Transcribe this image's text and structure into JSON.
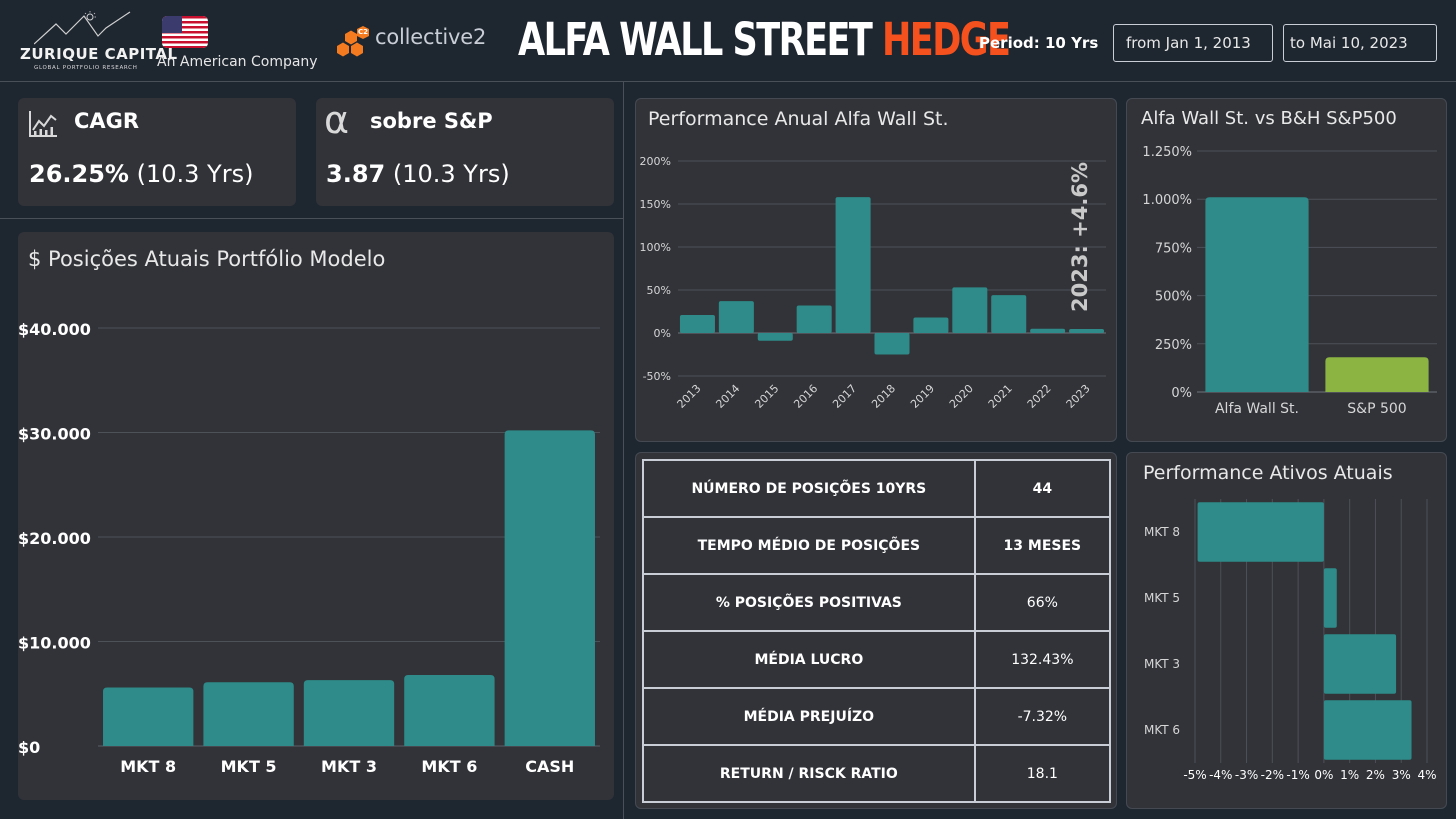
{
  "header": {
    "brand_name": "ZURIQUE CAPITAL",
    "brand_sub": "GLOBAL PORTFOLIO RESEARCH",
    "company_tag": "An American Company",
    "c2_badge": "C2",
    "c2_name": "collective2",
    "title_main": "ALFA WALL STREET",
    "title_accent": "HEDGE",
    "period": "Period: 10 Yrs",
    "from_date": "from Jan 1, 2013",
    "to_date": "to Mai 10, 2023"
  },
  "kpis": {
    "cagr": {
      "label": "CAGR",
      "value": "26.25%",
      "suffix": "(10.3 Yrs)"
    },
    "alpha": {
      "symbol": "α",
      "label": "sobre S&P",
      "value": "3.87",
      "suffix": "(10.3 Yrs)"
    }
  },
  "stats_table": [
    {
      "label": "NÚMERO DE POSIÇÕES 10YRS",
      "value": "44"
    },
    {
      "label": "TEMPO MÉDIO DE POSIÇÕES",
      "value": "13 MESES"
    },
    {
      "label": "% POSIÇÕES POSITIVAS",
      "value": "66%"
    },
    {
      "label": "MÉDIA LUCRO",
      "value": "132.43%"
    },
    {
      "label": "MÉDIA PREJUÍZO",
      "value": "-7.32%"
    },
    {
      "label": "RETURN / RISCK RATIO",
      "value": "18.1"
    }
  ],
  "colors": {
    "teal": "#2e8b89",
    "green": "#8bb443",
    "accent": "#f4511e"
  },
  "chart_data": [
    {
      "id": "positions",
      "type": "bar",
      "title": "$ Posições Atuais Portfólio Modelo",
      "categories": [
        "MKT 8",
        "MKT 5",
        "MKT 3",
        "MKT 6",
        "CASH"
      ],
      "values": [
        5600,
        6100,
        6300,
        6800,
        30200
      ],
      "ylim": [
        0,
        40000
      ],
      "yticks": [
        0,
        10000,
        20000,
        30000,
        40000
      ],
      "ytick_labels": [
        "$0",
        "$10.000",
        "$20.000",
        "$30.000",
        "$40.000"
      ]
    },
    {
      "id": "annual",
      "type": "bar",
      "title": "Performance Anual Alfa Wall St.",
      "categories": [
        "2013",
        "2014",
        "2015",
        "2016",
        "2017",
        "2018",
        "2019",
        "2020",
        "2021",
        "2022",
        "2023"
      ],
      "values": [
        21,
        37,
        -9,
        32,
        158,
        -25,
        18,
        53,
        44,
        5,
        4.6
      ],
      "ylim": [
        -50,
        200
      ],
      "yticks": [
        -50,
        0,
        50,
        100,
        150,
        200
      ],
      "ytick_labels": [
        "-50%",
        "0%",
        "50%",
        "100%",
        "150%",
        "200%"
      ],
      "annotation": "2023: +4.6%"
    },
    {
      "id": "vs_sp",
      "type": "bar",
      "title": "Alfa Wall St. vs B&H S&P500",
      "categories": [
        "Alfa Wall St.",
        "S&P 500"
      ],
      "values": [
        1010,
        180
      ],
      "ylim": [
        0,
        1250
      ],
      "yticks": [
        0,
        250,
        500,
        750,
        1000,
        1250
      ],
      "ytick_labels": [
        "0%",
        "250%",
        "500%",
        "750%",
        "1.000%",
        "1.250%"
      ]
    },
    {
      "id": "assets",
      "type": "bar",
      "orientation": "horizontal",
      "title": "Performance Ativos Atuais",
      "categories": [
        "MKT 8",
        "MKT 5",
        "MKT 3",
        "MKT 6"
      ],
      "values": [
        -4.9,
        0.5,
        2.8,
        3.4
      ],
      "xlim": [
        -5,
        4
      ],
      "xticks": [
        -5,
        -4,
        -3,
        -2,
        -1,
        0,
        1,
        2,
        3,
        4
      ],
      "xtick_labels": [
        "-5%",
        "-4%",
        "-3%",
        "-2%",
        "-1%",
        "0%",
        "1%",
        "2%",
        "3%",
        "4%"
      ]
    }
  ]
}
